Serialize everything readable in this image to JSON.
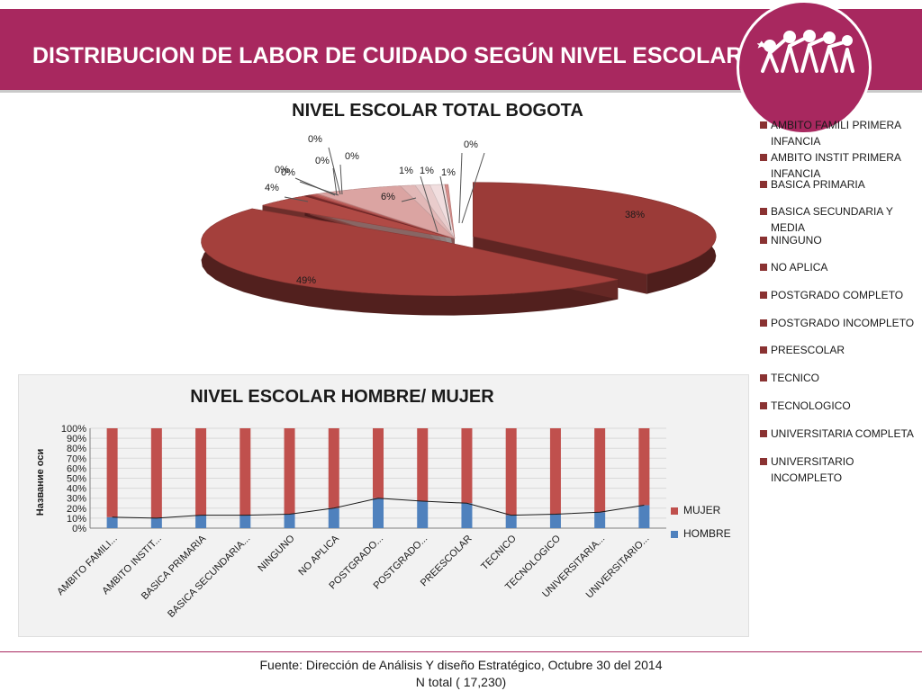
{
  "header": {
    "title": "DISTRIBUCION DE LABOR DE CUIDADO SEGÚN NIVEL ESCOLAR",
    "banner_color": "#a8285f",
    "logo_icon": "dancing-figures-logo"
  },
  "chart_data": [
    {
      "type": "pie",
      "title": "NIVEL ESCOLAR TOTAL BOGOTA",
      "categories": [
        "AMBITO FAMILI PRIMERA INFANCIA",
        "AMBITO INSTIT PRIMERA INFANCIA",
        "BASICA PRIMARIA",
        "BASICA SECUNDARIA Y MEDIA",
        "NINGUNO",
        "NO APLICA",
        "POSTGRADO COMPLETO",
        "POSTGRADO INCOMPLETO",
        "PREESCOLAR",
        "TECNICO",
        "TECNOLOGICO",
        "UNIVERSITARIA COMPLETA",
        "UNIVERSITARIO INCOMPLETO"
      ],
      "values": [
        0,
        0,
        38,
        49,
        4,
        0,
        0,
        0,
        0,
        6,
        1,
        1,
        1
      ],
      "data_labels": [
        "0%",
        "0%",
        "38%",
        "49%",
        "4%",
        "0%",
        "0%",
        "0%",
        "0%",
        "6%",
        "1%",
        "1%",
        "1%"
      ],
      "colors": [
        "#7a2b2c",
        "#8a3232",
        "#9b3b38",
        "#a4403c",
        "#b04a45",
        "#bf5551",
        "#c9625f",
        "#d07570",
        "#d58d8a",
        "#dba4a2",
        "#e2b8b7",
        "#e9cccc",
        "#f1dedf"
      ],
      "legend_position": "right",
      "style": "3d-exploded"
    },
    {
      "type": "bar",
      "stacked": "percent",
      "title": "NIVEL ESCOLAR  HOMBRE/ MUJER",
      "ylabel": "Название оси",
      "xlabel": "",
      "ylim": [
        0,
        100
      ],
      "yticks": [
        "0%",
        "10%",
        "20%",
        "30%",
        "40%",
        "50%",
        "60%",
        "70%",
        "80%",
        "90%",
        "100%"
      ],
      "categories": [
        "AMBITO FAMILI...",
        "AMBITO INSTIT...",
        "BASICA PRIMARIA",
        "BASICA SECUNDARIA...",
        "NINGUNO",
        "NO APLICA",
        "POSTGRADO...",
        "POSTGRADO...",
        "PREESCOLAR",
        "TECNICO",
        "TECNOLOGICO",
        "UNIVERSITARIA...",
        "UNIVERSITARIO..."
      ],
      "series": [
        {
          "name": "HOMBRE",
          "values": [
            11,
            10,
            13,
            13,
            14,
            20,
            30,
            27,
            25,
            13,
            14,
            16,
            23
          ],
          "color": "#4f81bd"
        },
        {
          "name": "MUJER",
          "values": [
            89,
            90,
            87,
            87,
            86,
            80,
            70,
            73,
            75,
            87,
            86,
            84,
            77
          ],
          "color": "#c0504d"
        }
      ],
      "line_overlay": "HOMBRE",
      "grid": true,
      "legend_position": "right"
    }
  ],
  "footer": {
    "source": "Fuente: Dirección de Análisis Y diseño Estratégico, Octubre 30 del 2014",
    "total": "N total ( 17,230)"
  }
}
